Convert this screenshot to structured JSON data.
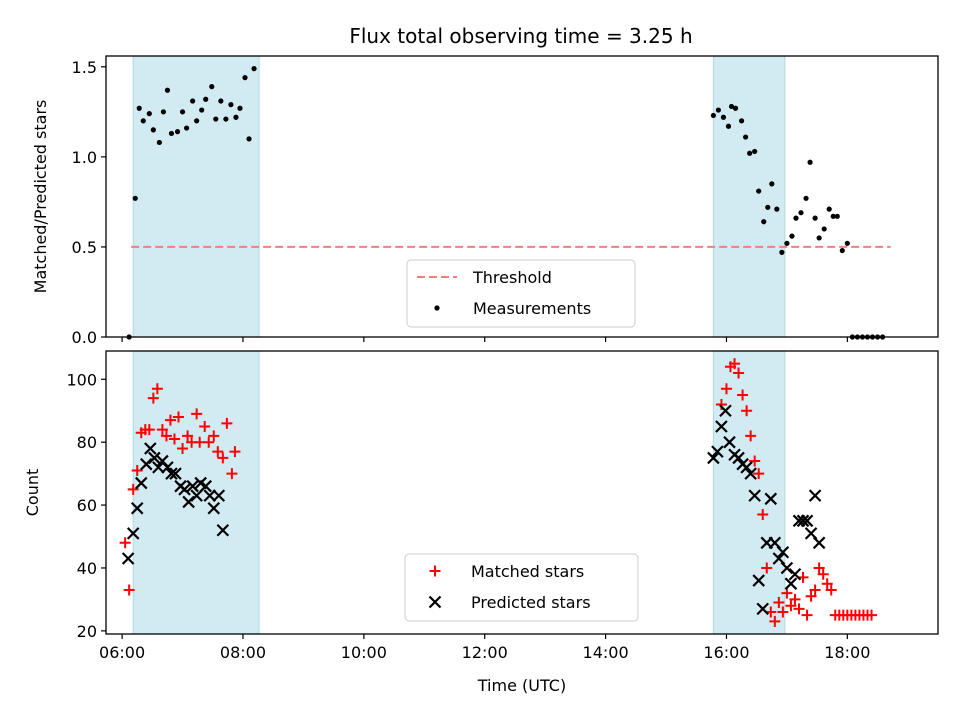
{
  "figure": {
    "title": "Flux total observing time = 3.25 h"
  },
  "chart_data": [
    {
      "type": "scatter",
      "panel": "top",
      "ylabel": "Matched/Predicted stars",
      "xlabel": "",
      "xlim": [
        "05:44",
        "19:30"
      ],
      "ylim": [
        0,
        1.56
      ],
      "yticks": [
        0.0,
        0.5,
        1.0,
        1.5
      ],
      "ytick_labels": [
        "0.0",
        "0.5",
        "1.0",
        "1.5"
      ],
      "shaded_intervals": [
        [
          "06:11",
          "08:16"
        ],
        [
          "15:47",
          "16:58"
        ]
      ],
      "shade_color": "#add8e6",
      "legend": {
        "placement": "lower center",
        "entries": [
          "Threshold",
          "Measurements"
        ]
      },
      "threshold": {
        "name": "Threshold",
        "value": 0.5,
        "x_range": [
          "06:09",
          "18:43"
        ],
        "color": "#f08080",
        "style": "dashed"
      },
      "series": [
        {
          "name": "Measurements",
          "marker": "dot",
          "color": "#000000",
          "points": [
            [
              "06:07",
              0.0
            ],
            [
              "06:13",
              0.77
            ],
            [
              "06:17",
              1.27
            ],
            [
              "06:21",
              1.2
            ],
            [
              "06:27",
              1.24
            ],
            [
              "06:31",
              1.15
            ],
            [
              "06:37",
              1.08
            ],
            [
              "06:41",
              1.25
            ],
            [
              "06:45",
              1.37
            ],
            [
              "06:49",
              1.13
            ],
            [
              "06:55",
              1.14
            ],
            [
              "07:00",
              1.25
            ],
            [
              "07:04",
              1.16
            ],
            [
              "07:10",
              1.31
            ],
            [
              "07:14",
              1.2
            ],
            [
              "07:19",
              1.26
            ],
            [
              "07:23",
              1.32
            ],
            [
              "07:29",
              1.39
            ],
            [
              "07:33",
              1.21
            ],
            [
              "07:38",
              1.31
            ],
            [
              "07:43",
              1.21
            ],
            [
              "07:48",
              1.29
            ],
            [
              "07:53",
              1.22
            ],
            [
              "07:57",
              1.27
            ],
            [
              "08:02",
              1.44
            ],
            [
              "08:06",
              1.1
            ],
            [
              "08:11",
              1.49
            ],
            [
              "15:47",
              1.23
            ],
            [
              "15:52",
              1.26
            ],
            [
              "15:57",
              1.22
            ],
            [
              "16:02",
              1.17
            ],
            [
              "16:05",
              1.28
            ],
            [
              "16:09",
              1.27
            ],
            [
              "16:15",
              1.2
            ],
            [
              "16:19",
              1.11
            ],
            [
              "16:23",
              1.02
            ],
            [
              "16:28",
              1.03
            ],
            [
              "16:32",
              0.81
            ],
            [
              "16:37",
              0.64
            ],
            [
              "16:41",
              0.72
            ],
            [
              "16:45",
              0.85
            ],
            [
              "16:50",
              0.71
            ],
            [
              "16:55",
              0.47
            ],
            [
              "17:00",
              0.52
            ],
            [
              "17:05",
              0.56
            ],
            [
              "17:09",
              0.66
            ],
            [
              "17:14",
              0.69
            ],
            [
              "17:19",
              0.77
            ],
            [
              "17:23",
              0.97
            ],
            [
              "17:28",
              0.66
            ],
            [
              "17:32",
              0.55
            ],
            [
              "17:37",
              0.6
            ],
            [
              "17:42",
              0.71
            ],
            [
              "17:46",
              0.67
            ],
            [
              "17:50",
              0.67
            ],
            [
              "17:55",
              0.48
            ],
            [
              "18:00",
              0.52
            ],
            [
              "18:05",
              0.0
            ],
            [
              "18:10",
              0.0
            ],
            [
              "18:15",
              0.0
            ],
            [
              "18:20",
              0.0
            ],
            [
              "18:25",
              0.0
            ],
            [
              "18:30",
              0.0
            ],
            [
              "18:35",
              0.0
            ]
          ]
        }
      ]
    },
    {
      "type": "scatter",
      "panel": "bottom",
      "ylabel": "Count",
      "xlabel": "Time (UTC)",
      "xlim": [
        "05:44",
        "19:30"
      ],
      "ylim": [
        19,
        109
      ],
      "yticks": [
        20,
        40,
        60,
        80,
        100
      ],
      "ytick_labels": [
        "20",
        "40",
        "60",
        "80",
        "100"
      ],
      "xticks": [
        "06:00",
        "08:00",
        "10:00",
        "12:00",
        "14:00",
        "16:00",
        "18:00"
      ],
      "shaded_intervals": [
        [
          "06:11",
          "08:16"
        ],
        [
          "15:47",
          "16:58"
        ]
      ],
      "shade_color": "#add8e6",
      "legend": {
        "placement": "lower center",
        "entries": [
          "Matched stars",
          "Predicted stars"
        ]
      },
      "series": [
        {
          "name": "Matched stars",
          "marker": "plus",
          "color": "#ff0000",
          "points": [
            [
              "06:03",
              48
            ],
            [
              "06:07",
              33
            ],
            [
              "06:11",
              65
            ],
            [
              "06:15",
              71
            ],
            [
              "06:19",
              83
            ],
            [
              "06:23",
              84
            ],
            [
              "06:27",
              84
            ],
            [
              "06:31",
              94
            ],
            [
              "06:35",
              97
            ],
            [
              "06:40",
              84
            ],
            [
              "06:44",
              82
            ],
            [
              "06:48",
              87
            ],
            [
              "06:52",
              81
            ],
            [
              "06:56",
              88
            ],
            [
              "07:00",
              78
            ],
            [
              "07:05",
              82
            ],
            [
              "07:09",
              80
            ],
            [
              "07:14",
              89
            ],
            [
              "07:17",
              80
            ],
            [
              "07:22",
              85
            ],
            [
              "07:26",
              80
            ],
            [
              "07:31",
              82
            ],
            [
              "07:35",
              77
            ],
            [
              "07:40",
              75
            ],
            [
              "07:44",
              86
            ],
            [
              "07:49",
              70
            ],
            [
              "07:52",
              77
            ],
            [
              "15:55",
              92
            ],
            [
              "16:00",
              97
            ],
            [
              "16:04",
              104
            ],
            [
              "16:08",
              105
            ],
            [
              "16:12",
              102
            ],
            [
              "16:16",
              95
            ],
            [
              "16:20",
              90
            ],
            [
              "16:24",
              82
            ],
            [
              "16:28",
              74
            ],
            [
              "16:32",
              70
            ],
            [
              "16:36",
              57
            ],
            [
              "16:40",
              40
            ],
            [
              "16:44",
              26
            ],
            [
              "16:48",
              23
            ],
            [
              "16:52",
              29
            ],
            [
              "16:56",
              26
            ],
            [
              "17:00",
              32
            ],
            [
              "17:04",
              28
            ],
            [
              "17:08",
              30
            ],
            [
              "17:12",
              27
            ],
            [
              "17:16",
              37
            ],
            [
              "17:20",
              25
            ],
            [
              "17:24",
              31
            ],
            [
              "17:28",
              33
            ],
            [
              "17:32",
              40
            ],
            [
              "17:36",
              38
            ],
            [
              "17:40",
              35
            ],
            [
              "17:44",
              33
            ],
            [
              "17:48",
              25
            ],
            [
              "17:52",
              25
            ],
            [
              "17:56",
              25
            ],
            [
              "18:00",
              25
            ],
            [
              "18:04",
              25
            ],
            [
              "18:08",
              25
            ],
            [
              "18:12",
              25
            ],
            [
              "18:16",
              25
            ],
            [
              "18:20",
              25
            ],
            [
              "18:24",
              25
            ]
          ]
        },
        {
          "name": "Predicted stars",
          "marker": "cross",
          "color": "#000000",
          "points": [
            [
              "06:06",
              43
            ],
            [
              "06:11",
              51
            ],
            [
              "06:15",
              59
            ],
            [
              "06:19",
              67
            ],
            [
              "06:24",
              73
            ],
            [
              "06:28",
              78
            ],
            [
              "06:32",
              75
            ],
            [
              "06:36",
              72
            ],
            [
              "06:40",
              74
            ],
            [
              "06:45",
              72
            ],
            [
              "06:49",
              70
            ],
            [
              "06:53",
              70
            ],
            [
              "06:58",
              66
            ],
            [
              "07:02",
              65
            ],
            [
              "07:06",
              61
            ],
            [
              "07:10",
              66
            ],
            [
              "07:14",
              63
            ],
            [
              "07:18",
              67
            ],
            [
              "07:23",
              66
            ],
            [
              "07:27",
              63
            ],
            [
              "07:31",
              59
            ],
            [
              "07:36",
              63
            ],
            [
              "07:40",
              52
            ],
            [
              "15:47",
              75
            ],
            [
              "15:51",
              77
            ],
            [
              "15:55",
              85
            ],
            [
              "15:59",
              90
            ],
            [
              "16:03",
              80
            ],
            [
              "16:08",
              76
            ],
            [
              "16:12",
              75
            ],
            [
              "16:16",
              73
            ],
            [
              "16:20",
              72
            ],
            [
              "16:24",
              70
            ],
            [
              "16:28",
              63
            ],
            [
              "16:32",
              36
            ],
            [
              "16:36",
              27
            ],
            [
              "16:40",
              48
            ],
            [
              "16:44",
              62
            ],
            [
              "16:48",
              48
            ],
            [
              "16:52",
              43
            ],
            [
              "16:56",
              45
            ],
            [
              "17:00",
              40
            ],
            [
              "17:04",
              35
            ],
            [
              "17:08",
              38
            ],
            [
              "17:12",
              55
            ],
            [
              "17:16",
              55
            ],
            [
              "17:20",
              55
            ],
            [
              "17:24",
              51
            ],
            [
              "17:28",
              63
            ],
            [
              "17:32",
              48
            ]
          ]
        }
      ]
    }
  ]
}
